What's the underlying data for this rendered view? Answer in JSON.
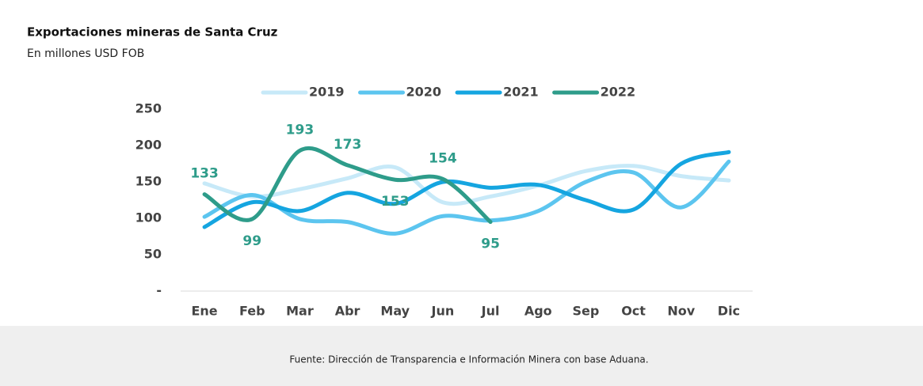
{
  "chart_data": {
    "type": "line",
    "title": "Exportaciones mineras de Santa Cruz",
    "subtitle": "En millones USD FOB",
    "source": "Fuente: Dirección de Transparencia e Información Minera con base Aduana.",
    "categories": [
      "Ene",
      "Feb",
      "Mar",
      "Abr",
      "May",
      "Jun",
      "Jul",
      "Ago",
      "Sep",
      "Oct",
      "Nov",
      "Dic"
    ],
    "series": [
      {
        "name": "2019",
        "color": "#c7e9f8",
        "values": [
          148,
          130,
          140,
          155,
          170,
          122,
          130,
          145,
          165,
          172,
          158,
          152
        ]
      },
      {
        "name": "2020",
        "color": "#5cc5ef",
        "values": [
          102,
          132,
          99,
          95,
          79,
          103,
          97,
          110,
          150,
          163,
          115,
          178
        ]
      },
      {
        "name": "2021",
        "color": "#15a5e0",
        "values": [
          88,
          122,
          110,
          135,
          120,
          150,
          142,
          146,
          125,
          112,
          175,
          191
        ]
      },
      {
        "name": "2022",
        "color": "#2e9c8a",
        "values": [
          133,
          99,
          193,
          173,
          153,
          154,
          95,
          null,
          null,
          null,
          null,
          null
        ],
        "data_labels": true
      }
    ],
    "ylim": [
      0,
      270
    ],
    "yticks": [
      {
        "value": 0,
        "label": "-"
      },
      50,
      100,
      150,
      200,
      250
    ],
    "legend": "top"
  }
}
